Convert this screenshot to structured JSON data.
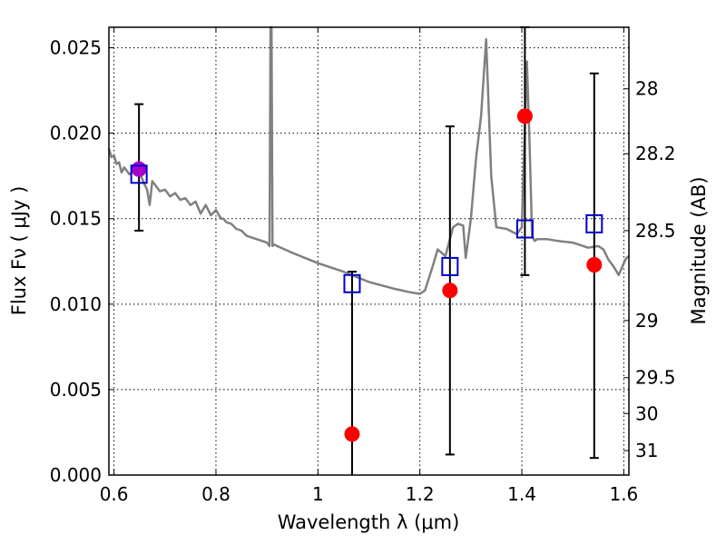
{
  "chart_data": {
    "type": "scatter",
    "xlabel": "Wavelength  λ (μm)",
    "ylabel": "Flux  Fν  ( μJy )",
    "ylabel_right": "Magnitude (AB)",
    "xlim": [
      0.59,
      1.61
    ],
    "ylim": [
      0.0,
      0.0262
    ],
    "grid": true,
    "x_ticks": [
      0.6,
      0.8,
      1.0,
      1.2,
      1.4,
      1.6
    ],
    "x_tick_labels": [
      "0.6",
      "0.8",
      "1",
      "1.2",
      "1.4",
      "1.6"
    ],
    "y_ticks": [
      0.0,
      0.005,
      0.01,
      0.015,
      0.02,
      0.025
    ],
    "y_tick_labels": [
      "0.000",
      "0.005",
      "0.010",
      "0.015",
      "0.020",
      "0.025"
    ],
    "right_ticks": [
      {
        "label": "28",
        "flux": 0.0226
      },
      {
        "label": "28.2",
        "flux": 0.0188
      },
      {
        "label": "28.5",
        "flux": 0.0143
      },
      {
        "label": "29",
        "flux": 0.00904
      },
      {
        "label": "29.5",
        "flux": 0.0057
      },
      {
        "label": "30",
        "flux": 0.0036
      },
      {
        "label": "31",
        "flux": 0.00143
      }
    ],
    "series": [
      {
        "kind": "spectrum",
        "color": "#808080",
        "x": [
          0.59,
          0.595,
          0.6,
          0.605,
          0.61,
          0.615,
          0.62,
          0.63,
          0.64,
          0.65,
          0.66,
          0.665,
          0.67,
          0.675,
          0.68,
          0.69,
          0.7,
          0.71,
          0.72,
          0.73,
          0.74,
          0.75,
          0.76,
          0.77,
          0.78,
          0.79,
          0.8,
          0.81,
          0.815,
          0.82,
          0.83,
          0.84,
          0.85,
          0.86,
          0.87,
          0.88,
          0.89,
          0.9,
          0.905,
          0.907,
          0.909,
          0.911,
          0.913,
          0.92,
          0.95,
          1.0,
          1.05,
          1.1,
          1.15,
          1.18,
          1.2,
          1.21,
          1.225,
          1.235,
          1.25,
          1.265,
          1.275,
          1.285,
          1.29,
          1.3,
          1.31,
          1.32,
          1.33,
          1.34,
          1.35,
          1.37,
          1.39,
          1.4,
          1.41,
          1.415,
          1.42,
          1.425,
          1.43,
          1.45,
          1.47,
          1.5,
          1.53,
          1.55,
          1.56,
          1.57,
          1.58,
          1.59,
          1.6,
          1.605,
          1.61
        ],
        "y": [
          0.0191,
          0.0186,
          0.0187,
          0.0182,
          0.0183,
          0.0177,
          0.018,
          0.0176,
          0.0178,
          0.0177,
          0.017,
          0.0167,
          0.0158,
          0.0172,
          0.017,
          0.0166,
          0.0167,
          0.0163,
          0.0165,
          0.0161,
          0.0162,
          0.0158,
          0.016,
          0.0153,
          0.0158,
          0.0152,
          0.0155,
          0.015,
          0.015,
          0.0148,
          0.0147,
          0.0144,
          0.0143,
          0.014,
          0.0139,
          0.0138,
          0.0137,
          0.0136,
          0.0134,
          0.0262,
          0.0262,
          0.0134,
          0.0135,
          0.0134,
          0.013,
          0.0124,
          0.0119,
          0.0113,
          0.0109,
          0.0107,
          0.0106,
          0.0108,
          0.0122,
          0.0132,
          0.0128,
          0.0145,
          0.0147,
          0.0146,
          0.0127,
          0.015,
          0.0185,
          0.021,
          0.0255,
          0.0175,
          0.0145,
          0.0144,
          0.0141,
          0.0145,
          0.0242,
          0.0195,
          0.014,
          0.0137,
          0.0138,
          0.0138,
          0.0137,
          0.0136,
          0.0133,
          0.0134,
          0.0132,
          0.0126,
          0.0122,
          0.0117,
          0.0124,
          0.0127,
          0.0128
        ]
      },
      {
        "kind": "observed",
        "color": "#ff0000",
        "x": [
          0.649,
          1.067,
          1.259,
          1.406,
          1.542
        ],
        "y": [
          0.0179,
          0.0024,
          0.0108,
          0.021,
          0.0123
        ],
        "yerr_low": [
          0.0143,
          0.0,
          0.0012,
          0.0117,
          0.001
        ],
        "yerr_high": [
          0.0217,
          0.0119,
          0.0204,
          0.0262,
          0.0235
        ]
      },
      {
        "kind": "model-photometry",
        "color": "#0000cc",
        "x": [
          0.649,
          1.067,
          1.259,
          1.406,
          1.542
        ],
        "y": [
          0.0176,
          0.0112,
          0.0122,
          0.0144,
          0.0147
        ]
      }
    ]
  }
}
